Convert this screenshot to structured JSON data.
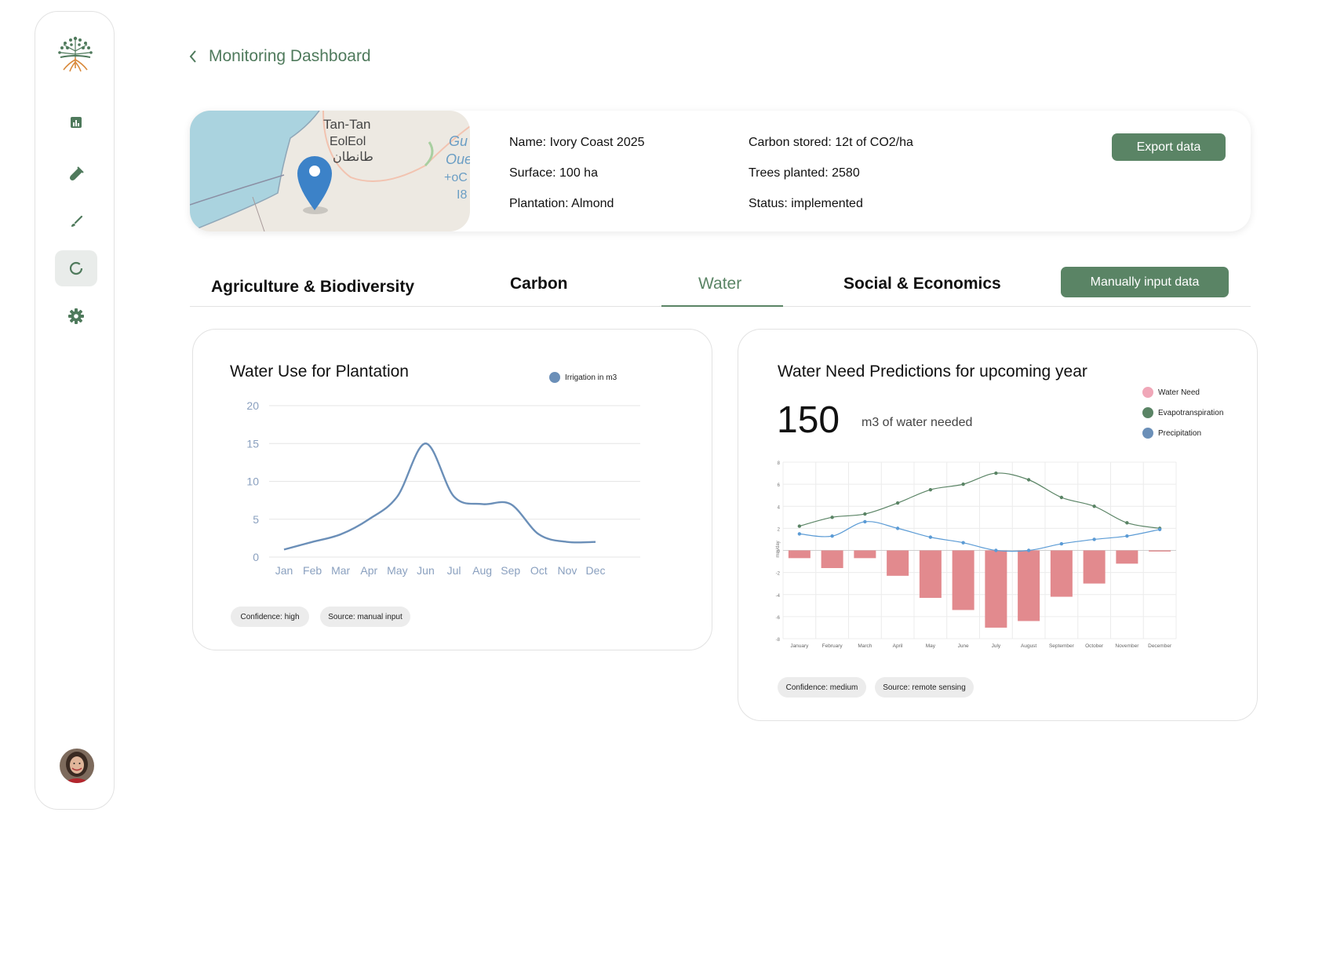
{
  "header": {
    "back_label": "Monitoring Dashboard"
  },
  "project": {
    "map_labels": [
      "Tan-Tan",
      "EolEol",
      "طانطان",
      "Gu",
      "Oue",
      "+oC",
      "I8"
    ],
    "name": "Name: Ivory Coast 2025",
    "surface": "Surface: 100 ha",
    "plantation": "Plantation: Almond",
    "carbon": "Carbon stored: 12t of CO2/ha",
    "trees": "Trees planted: 2580",
    "status": "Status: implemented",
    "export_label": "Export data"
  },
  "tabs": {
    "items": [
      "Agriculture & Biodiversity",
      "Carbon",
      "Water",
      "Social & Economics"
    ],
    "active": "Water",
    "manual_input_label": "Manually input data"
  },
  "sidebar": {
    "icons": [
      "chart-icon",
      "flask-icon",
      "brush-icon",
      "cycle-icon",
      "gear-icon"
    ],
    "active": "cycle-icon",
    "accent": "#4f7a5c"
  },
  "water_use": {
    "title": "Water Use for Plantation",
    "legend": "Irrigation in m3",
    "confidence": "Confidence: high",
    "source": "Source: manual input"
  },
  "water_need": {
    "title": "Water Need Predictions for upcoming year",
    "big_value": "150",
    "big_unit": "m3 of water needed",
    "y_axis_label": "mm/day",
    "legend": [
      "Water Need",
      "Evapotranspiration",
      "Precipitation"
    ],
    "confidence": "Confidence: medium",
    "source": "Source: remote sensing"
  },
  "colors": {
    "accent_green": "#5a8465",
    "line_blue": "#6b8fb8",
    "bar_red": "#e28a8e",
    "evapo_green": "#5a8465",
    "precip_blue": "#5b9bd5",
    "water_need_pink": "#f0a7b8"
  },
  "chart_data": [
    {
      "type": "line",
      "title": "Water Use for Plantation",
      "categories": [
        "Jan",
        "Feb",
        "Mar",
        "Apr",
        "May",
        "Jun",
        "Jul",
        "Aug",
        "Sep",
        "Oct",
        "Nov",
        "Dec"
      ],
      "series": [
        {
          "name": "Irrigation in m3",
          "values": [
            1,
            2,
            3,
            5,
            8,
            15,
            8,
            7,
            7,
            3,
            2,
            2
          ]
        }
      ],
      "yticks": [
        0,
        5,
        10,
        15,
        20
      ],
      "ylim": [
        0,
        20
      ],
      "grid": true,
      "legend": "top-right"
    },
    {
      "type": "bar",
      "title": "Water Need Predictions for upcoming year",
      "categories": [
        "January",
        "February",
        "March",
        "April",
        "May",
        "June",
        "July",
        "August",
        "September",
        "October",
        "November",
        "December"
      ],
      "series": [
        {
          "name": "Water Need",
          "type": "bar",
          "values": [
            -0.7,
            -1.6,
            -0.7,
            -2.3,
            -4.3,
            -5.4,
            -7.0,
            -6.4,
            -4.2,
            -3.0,
            -1.2,
            -0.1
          ]
        },
        {
          "name": "Evapotranspiration",
          "type": "line",
          "values": [
            2.2,
            3.0,
            3.3,
            4.3,
            5.5,
            6.0,
            7.0,
            6.4,
            4.8,
            4.0,
            2.5,
            2.0
          ]
        },
        {
          "name": "Precipitation",
          "type": "line",
          "values": [
            1.5,
            1.3,
            2.6,
            2.0,
            1.2,
            0.7,
            0.0,
            0.0,
            0.6,
            1.0,
            1.3,
            1.9
          ]
        }
      ],
      "yticks": [
        -8,
        -6,
        -4,
        -2,
        0,
        2,
        4,
        6,
        8
      ],
      "ylim": [
        -8,
        8
      ],
      "ylabel": "mm/day",
      "grid": true,
      "legend": "top-right"
    }
  ]
}
